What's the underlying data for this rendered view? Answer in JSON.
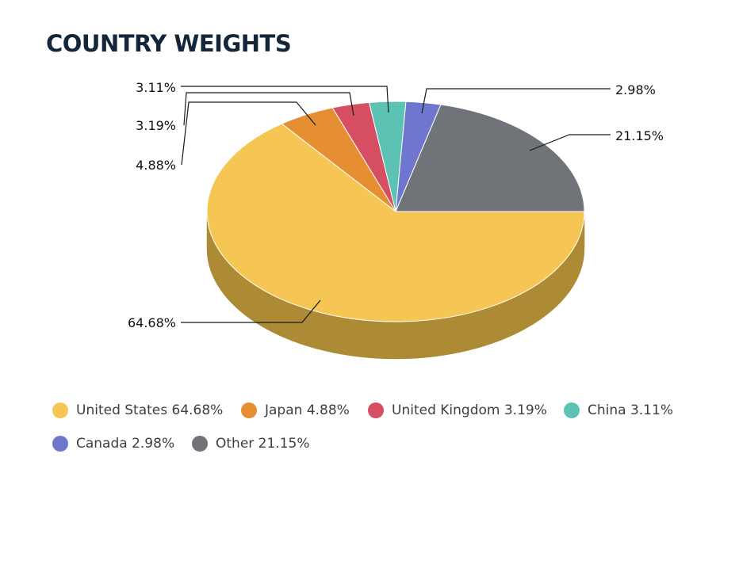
{
  "title": "COUNTRY WEIGHTS",
  "chart_data": {
    "type": "pie",
    "style": "3d-tilted",
    "title": "COUNTRY WEIGHTS",
    "slices": [
      {
        "name": "United States",
        "value": 64.68,
        "label": "64.68%",
        "legend": "United States 64.68%",
        "color": "#F5C653",
        "side_color": "#AD8A34"
      },
      {
        "name": "Japan",
        "value": 4.88,
        "label": "4.88%",
        "legend": "Japan 4.88%",
        "color": "#E58F32",
        "side_color": "#A0641F"
      },
      {
        "name": "United Kingdom",
        "value": 3.19,
        "label": "3.19%",
        "legend": "United Kingdom 3.19%",
        "color": "#D64E62",
        "side_color": "#963644"
      },
      {
        "name": "China",
        "value": 3.11,
        "label": "3.11%",
        "legend": "China 3.11%",
        "color": "#5CC3B4",
        "side_color": "#3F887E"
      },
      {
        "name": "Canada",
        "value": 2.98,
        "label": "2.98%",
        "legend": "Canada 2.98%",
        "color": "#6E76D0",
        "side_color": "#4D5292"
      },
      {
        "name": "Other",
        "value": 21.15,
        "label": "21.15%",
        "legend": "Other 21.15%",
        "color": "#707378",
        "side_color": "#4E5054"
      }
    ],
    "legend_position": "bottom"
  }
}
